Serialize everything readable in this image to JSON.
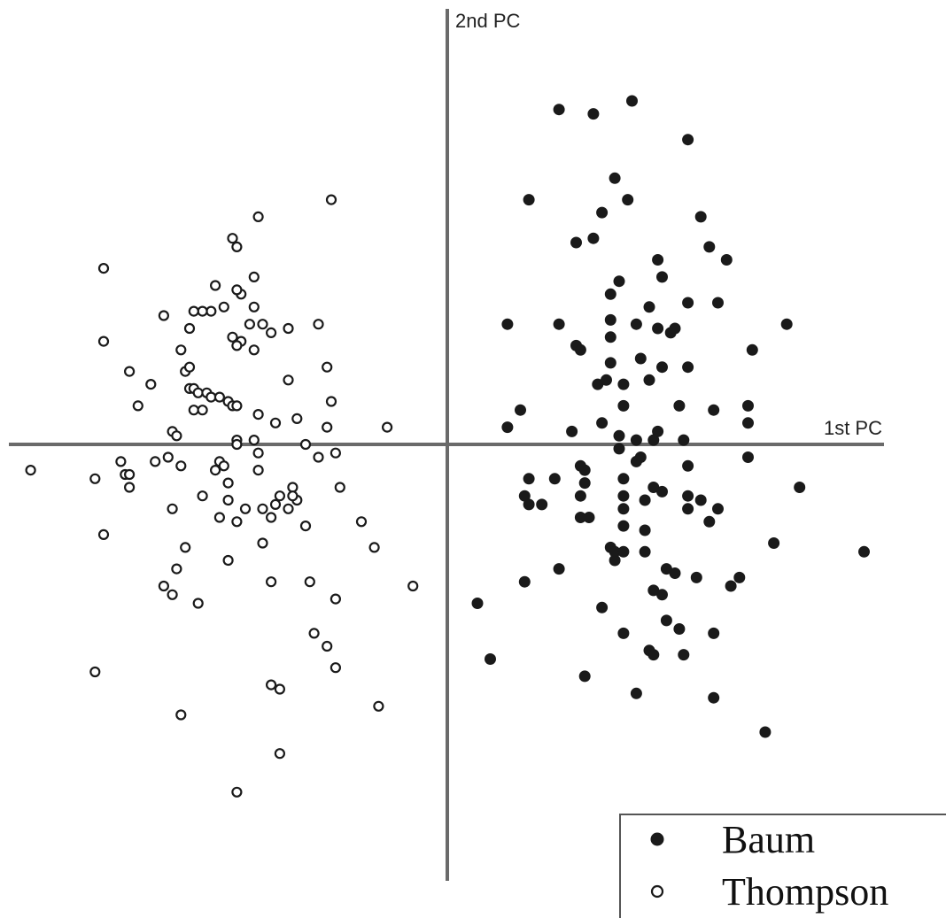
{
  "chart_data": {
    "type": "scatter",
    "xlabel": "1st PC",
    "ylabel": "2nd PC",
    "grid": false,
    "tick_labels": false,
    "legend_position": "bottom-right",
    "xlim": [
      -4.9,
      4.95
    ],
    "ylim": [
      -4.9,
      4.95
    ],
    "series": [
      {
        "name": "Baum",
        "marker": "filled-circle",
        "color": "#1a1a1a",
        "points": [
          [
            1.3,
            3.9
          ],
          [
            1.7,
            3.85
          ],
          [
            2.15,
            4.0
          ],
          [
            2.8,
            3.55
          ],
          [
            0.95,
            2.85
          ],
          [
            1.8,
            2.7
          ],
          [
            2.1,
            2.85
          ],
          [
            1.95,
            3.1
          ],
          [
            2.95,
            2.65
          ],
          [
            1.5,
            2.35
          ],
          [
            1.7,
            2.4
          ],
          [
            3.05,
            2.3
          ],
          [
            3.25,
            2.15
          ],
          [
            2.45,
            2.15
          ],
          [
            2.5,
            1.95
          ],
          [
            2.0,
            1.9
          ],
          [
            1.9,
            1.75
          ],
          [
            0.7,
            1.4
          ],
          [
            1.3,
            1.4
          ],
          [
            1.9,
            1.45
          ],
          [
            2.2,
            1.4
          ],
          [
            2.35,
            1.6
          ],
          [
            2.8,
            1.65
          ],
          [
            3.15,
            1.65
          ],
          [
            3.95,
            1.4
          ],
          [
            2.45,
            1.35
          ],
          [
            2.6,
            1.3
          ],
          [
            2.65,
            1.35
          ],
          [
            1.5,
            1.15
          ],
          [
            1.55,
            1.1
          ],
          [
            1.9,
            1.25
          ],
          [
            2.25,
            1.0
          ],
          [
            2.5,
            0.9
          ],
          [
            2.8,
            0.9
          ],
          [
            3.55,
            1.1
          ],
          [
            1.75,
            0.7
          ],
          [
            1.85,
            0.75
          ],
          [
            2.05,
            0.7
          ],
          [
            2.35,
            0.75
          ],
          [
            1.9,
            0.95
          ],
          [
            0.85,
            0.4
          ],
          [
            0.7,
            0.2
          ],
          [
            1.45,
            0.15
          ],
          [
            1.8,
            0.25
          ],
          [
            2.05,
            0.45
          ],
          [
            2.7,
            0.45
          ],
          [
            3.1,
            0.4
          ],
          [
            3.5,
            0.45
          ],
          [
            3.5,
            0.25
          ],
          [
            2.0,
            0.1
          ],
          [
            2.2,
            0.05
          ],
          [
            2.45,
            0.15
          ],
          [
            2.4,
            0.05
          ],
          [
            2.75,
            0.05
          ],
          [
            2.0,
            -0.05
          ],
          [
            2.2,
            -0.2
          ],
          [
            2.25,
            -0.15
          ],
          [
            1.6,
            -0.3
          ],
          [
            1.55,
            -0.25
          ],
          [
            1.6,
            -0.45
          ],
          [
            1.25,
            -0.4
          ],
          [
            0.95,
            -0.4
          ],
          [
            2.05,
            -0.4
          ],
          [
            2.8,
            -0.25
          ],
          [
            3.5,
            -0.15
          ],
          [
            1.55,
            -0.6
          ],
          [
            2.05,
            -0.6
          ],
          [
            2.4,
            -0.5
          ],
          [
            2.5,
            -0.55
          ],
          [
            2.3,
            -0.65
          ],
          [
            2.8,
            -0.6
          ],
          [
            2.95,
            -0.65
          ],
          [
            0.9,
            -0.6
          ],
          [
            0.95,
            -0.7
          ],
          [
            1.1,
            -0.7
          ],
          [
            1.55,
            -0.85
          ],
          [
            1.65,
            -0.85
          ],
          [
            2.05,
            -0.75
          ],
          [
            2.8,
            -0.75
          ],
          [
            3.15,
            -0.75
          ],
          [
            3.05,
            -0.9
          ],
          [
            2.05,
            -0.95
          ],
          [
            2.3,
            -1.0
          ],
          [
            4.1,
            -0.5
          ],
          [
            1.9,
            -1.2
          ],
          [
            1.95,
            -1.25
          ],
          [
            2.05,
            -1.25
          ],
          [
            1.95,
            -1.35
          ],
          [
            2.3,
            -1.25
          ],
          [
            2.55,
            -1.45
          ],
          [
            2.65,
            -1.5
          ],
          [
            2.9,
            -1.55
          ],
          [
            3.4,
            -1.55
          ],
          [
            3.3,
            -1.65
          ],
          [
            1.3,
            -1.45
          ],
          [
            0.9,
            -1.6
          ],
          [
            2.4,
            -1.7
          ],
          [
            2.5,
            -1.75
          ],
          [
            3.8,
            -1.15
          ],
          [
            4.85,
            -1.25
          ],
          [
            0.35,
            -1.85
          ],
          [
            1.8,
            -1.9
          ],
          [
            2.55,
            -2.05
          ],
          [
            2.7,
            -2.15
          ],
          [
            2.05,
            -2.2
          ],
          [
            3.1,
            -2.2
          ],
          [
            2.35,
            -2.4
          ],
          [
            2.4,
            -2.45
          ],
          [
            2.75,
            -2.45
          ],
          [
            0.5,
            -2.5
          ],
          [
            1.6,
            -2.7
          ],
          [
            2.2,
            -2.9
          ],
          [
            3.1,
            -2.95
          ],
          [
            3.7,
            -3.35
          ]
        ]
      },
      {
        "name": "Thompson",
        "marker": "open-circle",
        "color": "#1a1a1a",
        "points": [
          [
            -1.35,
            2.85
          ],
          [
            -2.2,
            2.65
          ],
          [
            -2.5,
            2.4
          ],
          [
            -2.45,
            2.3
          ],
          [
            -4.0,
            2.05
          ],
          [
            -2.25,
            1.95
          ],
          [
            -2.4,
            1.75
          ],
          [
            -2.7,
            1.85
          ],
          [
            -2.45,
            1.8
          ],
          [
            -2.75,
            1.55
          ],
          [
            -2.85,
            1.55
          ],
          [
            -2.95,
            1.55
          ],
          [
            -2.6,
            1.6
          ],
          [
            -2.25,
            1.6
          ],
          [
            -3.3,
            1.5
          ],
          [
            -2.3,
            1.4
          ],
          [
            -3.0,
            1.35
          ],
          [
            -2.15,
            1.4
          ],
          [
            -2.05,
            1.3
          ],
          [
            -2.5,
            1.25
          ],
          [
            -2.4,
            1.2
          ],
          [
            -1.5,
            1.4
          ],
          [
            -1.85,
            1.35
          ],
          [
            -4.0,
            1.2
          ],
          [
            -3.1,
            1.1
          ],
          [
            -2.45,
            1.15
          ],
          [
            -2.25,
            1.1
          ],
          [
            -3.7,
            0.85
          ],
          [
            -3.45,
            0.7
          ],
          [
            -3.05,
            0.85
          ],
          [
            -3.0,
            0.65
          ],
          [
            -2.95,
            0.65
          ],
          [
            -3.0,
            0.9
          ],
          [
            -2.9,
            0.6
          ],
          [
            -2.8,
            0.6
          ],
          [
            -2.75,
            0.55
          ],
          [
            -2.65,
            0.55
          ],
          [
            -2.55,
            0.5
          ],
          [
            -2.5,
            0.45
          ],
          [
            -2.45,
            0.45
          ],
          [
            -1.85,
            0.75
          ],
          [
            -1.4,
            0.9
          ],
          [
            -3.6,
            0.45
          ],
          [
            -2.95,
            0.4
          ],
          [
            -2.85,
            0.4
          ],
          [
            -1.35,
            0.5
          ],
          [
            -2.2,
            0.35
          ],
          [
            -2.0,
            0.25
          ],
          [
            -1.75,
            0.3
          ],
          [
            -1.4,
            0.2
          ],
          [
            -0.7,
            0.2
          ],
          [
            -3.2,
            0.15
          ],
          [
            -3.15,
            0.1
          ],
          [
            -2.25,
            0.05
          ],
          [
            -2.45,
            0.05
          ],
          [
            -2.45,
            0.0
          ],
          [
            -2.2,
            -0.1
          ],
          [
            -1.65,
            0.0
          ],
          [
            -1.5,
            -0.15
          ],
          [
            -1.3,
            -0.1
          ],
          [
            -4.85,
            -0.3
          ],
          [
            -4.1,
            -0.4
          ],
          [
            -3.8,
            -0.2
          ],
          [
            -3.75,
            -0.35
          ],
          [
            -3.7,
            -0.35
          ],
          [
            -3.7,
            -0.5
          ],
          [
            -3.4,
            -0.2
          ],
          [
            -3.25,
            -0.15
          ],
          [
            -3.1,
            -0.25
          ],
          [
            -2.65,
            -0.2
          ],
          [
            -2.6,
            -0.25
          ],
          [
            -2.7,
            -0.3
          ],
          [
            -2.55,
            -0.45
          ],
          [
            -2.2,
            -0.3
          ],
          [
            -1.8,
            -0.5
          ],
          [
            -1.95,
            -0.6
          ],
          [
            -2.0,
            -0.7
          ],
          [
            -2.15,
            -0.75
          ],
          [
            -2.35,
            -0.75
          ],
          [
            -2.55,
            -0.65
          ],
          [
            -1.85,
            -0.75
          ],
          [
            -1.75,
            -0.65
          ],
          [
            -1.8,
            -0.6
          ],
          [
            -1.25,
            -0.5
          ],
          [
            -1.0,
            -0.9
          ],
          [
            -3.2,
            -0.75
          ],
          [
            -2.85,
            -0.6
          ],
          [
            -2.65,
            -0.85
          ],
          [
            -2.45,
            -0.9
          ],
          [
            -2.05,
            -0.85
          ],
          [
            -1.65,
            -0.95
          ],
          [
            -4.0,
            -1.05
          ],
          [
            -3.05,
            -1.2
          ],
          [
            -2.55,
            -1.35
          ],
          [
            -2.15,
            -1.15
          ],
          [
            -0.85,
            -1.2
          ],
          [
            -3.15,
            -1.45
          ],
          [
            -3.3,
            -1.65
          ],
          [
            -3.2,
            -1.75
          ],
          [
            -2.9,
            -1.85
          ],
          [
            -2.05,
            -1.6
          ],
          [
            -1.6,
            -1.6
          ],
          [
            -1.3,
            -1.8
          ],
          [
            -0.4,
            -1.65
          ],
          [
            -1.55,
            -2.2
          ],
          [
            -1.4,
            -2.35
          ],
          [
            -1.3,
            -2.6
          ],
          [
            -4.1,
            -2.65
          ],
          [
            -2.05,
            -2.8
          ],
          [
            -1.95,
            -2.85
          ],
          [
            -3.1,
            -3.15
          ],
          [
            -0.8,
            -3.05
          ],
          [
            -1.95,
            -3.6
          ],
          [
            -2.45,
            -4.05
          ]
        ]
      }
    ]
  }
}
